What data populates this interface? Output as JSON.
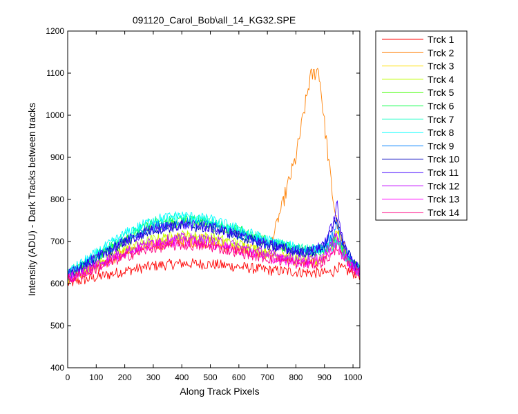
{
  "chart_data": {
    "type": "line",
    "title": "091120_Carol_Bob\\all_14_KG32.SPE",
    "xlabel": "Along Track Pixels",
    "ylabel": "Intensity (ADU) - Dark Tracks between tracks",
    "xlim": [
      0,
      1024
    ],
    "ylim": [
      400,
      1200
    ],
    "xticks": [
      0,
      100,
      200,
      300,
      400,
      500,
      600,
      700,
      800,
      900,
      1000
    ],
    "yticks": [
      400,
      500,
      600,
      700,
      800,
      900,
      1000,
      1100,
      1200
    ],
    "grid": false,
    "legend_position": "outside-top-right",
    "x_sample": [
      0,
      100,
      200,
      300,
      400,
      500,
      600,
      700,
      800,
      850,
      880,
      900,
      930,
      945,
      960,
      1000,
      1024
    ],
    "series": [
      {
        "name": "Trck 1",
        "color": "#ff0000",
        "values": [
          600,
          615,
          630,
          642,
          648,
          646,
          640,
          632,
          628,
          626,
          625,
          625,
          628,
          640,
          635,
          625,
          620
        ]
      },
      {
        "name": "Trck 2",
        "color": "#ff7f00",
        "values": [
          610,
          640,
          670,
          690,
          700,
          695,
          680,
          665,
          900,
          1090,
          1110,
          980,
          800,
          740,
          700,
          640,
          630
        ]
      },
      {
        "name": "Trck 3",
        "color": "#ffdf00",
        "values": [
          612,
          645,
          678,
          700,
          710,
          705,
          690,
          670,
          655,
          652,
          652,
          660,
          690,
          730,
          690,
          640,
          630
        ]
      },
      {
        "name": "Trck 4",
        "color": "#bfff00",
        "values": [
          614,
          648,
          682,
          705,
          715,
          710,
          694,
          673,
          658,
          655,
          656,
          662,
          700,
          720,
          680,
          640,
          630
        ]
      },
      {
        "name": "Trck 5",
        "color": "#40ff00",
        "values": [
          620,
          660,
          700,
          735,
          745,
          738,
          718,
          695,
          680,
          676,
          678,
          685,
          700,
          705,
          680,
          645,
          632
        ]
      },
      {
        "name": "Trck 6",
        "color": "#00ff40",
        "values": [
          622,
          665,
          708,
          742,
          752,
          745,
          725,
          700,
          683,
          680,
          682,
          688,
          700,
          700,
          678,
          644,
          632
        ]
      },
      {
        "name": "Trck 7",
        "color": "#00ffbf",
        "values": [
          624,
          668,
          712,
          746,
          756,
          748,
          727,
          701,
          684,
          680,
          680,
          686,
          695,
          700,
          676,
          643,
          631
        ]
      },
      {
        "name": "Trck 8",
        "color": "#00ffff",
        "values": [
          626,
          672,
          718,
          752,
          762,
          752,
          730,
          703,
          685,
          680,
          680,
          684,
          690,
          700,
          675,
          642,
          630
        ]
      },
      {
        "name": "Trck 9",
        "color": "#0080ff",
        "values": [
          620,
          662,
          703,
          735,
          745,
          738,
          718,
          695,
          680,
          676,
          680,
          690,
          720,
          740,
          700,
          648,
          632
        ]
      },
      {
        "name": "Trck 10",
        "color": "#0000bf",
        "values": [
          618,
          658,
          698,
          728,
          738,
          732,
          713,
          691,
          676,
          674,
          680,
          692,
          730,
          760,
          705,
          648,
          632
        ]
      },
      {
        "name": "Trck 11",
        "color": "#4000ff",
        "values": [
          619,
          660,
          700,
          730,
          740,
          734,
          715,
          692,
          677,
          676,
          685,
          700,
          740,
          790,
          710,
          650,
          633
        ]
      },
      {
        "name": "Trck 12",
        "color": "#bf00ff",
        "values": [
          612,
          645,
          676,
          700,
          708,
          703,
          688,
          670,
          658,
          655,
          660,
          668,
          700,
          715,
          680,
          640,
          630
        ]
      },
      {
        "name": "Trck 13",
        "color": "#ff00ff",
        "values": [
          610,
          640,
          670,
          693,
          700,
          695,
          681,
          664,
          652,
          650,
          654,
          660,
          680,
          700,
          670,
          636,
          628
        ]
      },
      {
        "name": "Trck 14",
        "color": "#ff0080",
        "values": [
          608,
          636,
          664,
          685,
          692,
          688,
          675,
          660,
          648,
          646,
          648,
          654,
          670,
          690,
          662,
          634,
          626
        ]
      }
    ]
  }
}
